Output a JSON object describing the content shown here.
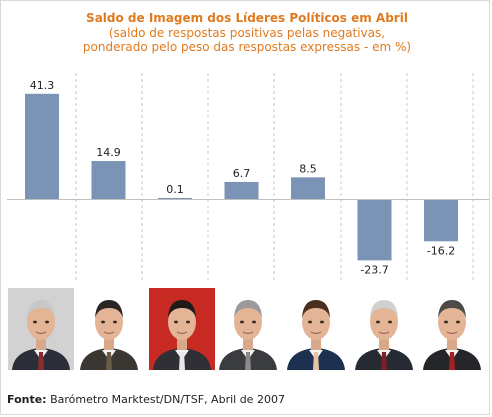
{
  "chart_data": {
    "type": "bar",
    "title": "Saldo de Imagem dos Líderes Políticos em Abril",
    "subtitle": [
      "(saldo de respostas positivas pelas negativas,",
      "ponderado pelo peso das respostas expressas - em %)"
    ],
    "categories": [
      "",
      "",
      "",
      "",
      "",
      "",
      ""
    ],
    "values": [
      41.3,
      14.9,
      0.1,
      6.7,
      8.5,
      -23.7,
      -16.2
    ],
    "labels": [
      "41.3",
      "14.9",
      "0.1",
      "6.7",
      "8.5",
      "-23.7",
      "-16.2"
    ],
    "xlabel": "",
    "ylabel": "",
    "ylim": [
      -23.7,
      41.3
    ],
    "bar_color": "#7b93b4",
    "gridlines": "vertical dashed separators",
    "legend": "none"
  },
  "portraits": [
    {
      "type": "man-grey-hair",
      "bg": "#d2d2d2",
      "hair": "#c8c8c8",
      "suit": "#2b2e38",
      "tie": "#8c2c2c"
    },
    {
      "type": "man-dark-hair",
      "bg": "#ffffff",
      "hair": "#2a2622",
      "suit": "#3a3733",
      "tie": "#6a5a48"
    },
    {
      "type": "man-dark-hair",
      "bg": "#c62a23",
      "hair": "#1f1b18",
      "suit": "#2f2f35",
      "tie": "#e8e8e8"
    },
    {
      "type": "man-grey-hair",
      "bg": "#ffffff",
      "hair": "#9a9a9a",
      "suit": "#3a3c40",
      "tie": "#8a8a88"
    },
    {
      "type": "man-dark-hair",
      "bg": "#ffffff",
      "hair": "#4a2e1e",
      "suit": "#1d3050",
      "tie": "#e7c3a6"
    },
    {
      "type": "man-grey-hair",
      "bg": "#ffffff",
      "hair": "#d0d0d0",
      "suit": "#262a33",
      "tie": "#7a1f24"
    },
    {
      "type": "man-dark-hair",
      "bg": "#ffffff",
      "hair": "#4d4a47",
      "suit": "#25262a",
      "tie": "#a51f26"
    }
  ],
  "footer": {
    "label": "Fonte:",
    "text": " Barómetro Marktest/DN/TSF, Abril de 2007"
  }
}
